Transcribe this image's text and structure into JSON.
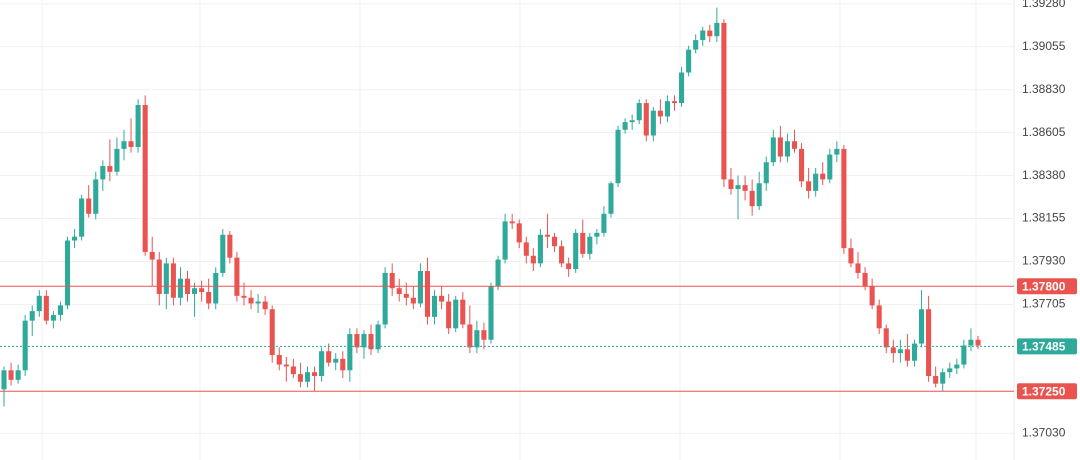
{
  "chart_data": {
    "type": "candlestick",
    "up_color": "#2fa99a",
    "down_color": "#ea5450",
    "grid": true,
    "ylim": [
      1.3689,
      1.393
    ],
    "yticks": [
      {
        "value": 1.3928,
        "label": "1.39280"
      },
      {
        "value": 1.39055,
        "label": "1.39055"
      },
      {
        "value": 1.3883,
        "label": "1.38830"
      },
      {
        "value": 1.38605,
        "label": "1.38605"
      },
      {
        "value": 1.3838,
        "label": "1.38380"
      },
      {
        "value": 1.38155,
        "label": "1.38155"
      },
      {
        "value": 1.3793,
        "label": "1.37930"
      },
      {
        "value": 1.37705,
        "label": "1.37705"
      },
      {
        "value": 1.3703,
        "label": "1.37030"
      }
    ],
    "levels": [
      {
        "value": 1.378,
        "label": "1.37800",
        "color": "#ea5450",
        "style": "solid"
      },
      {
        "value": 1.3725,
        "label": "1.37250",
        "color": "#ea5450",
        "style": "solid"
      },
      {
        "value": 1.37485,
        "label": "1.37485",
        "color": "#2fa99a",
        "style": "dashed"
      }
    ],
    "ohlc": [
      [
        1.3726,
        1.3738,
        1.3717,
        1.3736
      ],
      [
        1.3736,
        1.374,
        1.3728,
        1.3731
      ],
      [
        1.3731,
        1.3739,
        1.3729,
        1.3736
      ],
      [
        1.3736,
        1.3765,
        1.3733,
        1.3762
      ],
      [
        1.3762,
        1.377,
        1.3754,
        1.3767
      ],
      [
        1.3767,
        1.3778,
        1.3764,
        1.3775
      ],
      [
        1.3775,
        1.3778,
        1.376,
        1.3762
      ],
      [
        1.3762,
        1.3767,
        1.3758,
        1.3765
      ],
      [
        1.3765,
        1.3772,
        1.3762,
        1.377
      ],
      [
        1.377,
        1.3806,
        1.3768,
        1.3804
      ],
      [
        1.3804,
        1.381,
        1.38,
        1.3806
      ],
      [
        1.3806,
        1.3828,
        1.3804,
        1.3826
      ],
      [
        1.3826,
        1.3833,
        1.3816,
        1.3818
      ],
      [
        1.3818,
        1.384,
        1.3815,
        1.3836
      ],
      [
        1.3836,
        1.3846,
        1.383,
        1.3843
      ],
      [
        1.3843,
        1.3857,
        1.3835,
        1.384
      ],
      [
        1.384,
        1.3858,
        1.3838,
        1.3852
      ],
      [
        1.3852,
        1.3862,
        1.3846,
        1.3856
      ],
      [
        1.3856,
        1.3868,
        1.385,
        1.3853
      ],
      [
        1.3853,
        1.3878,
        1.385,
        1.3875
      ],
      [
        1.3875,
        1.388,
        1.3796,
        1.3798
      ],
      [
        1.3798,
        1.3806,
        1.378,
        1.3794
      ],
      [
        1.3794,
        1.3798,
        1.377,
        1.3776
      ],
      [
        1.3776,
        1.3795,
        1.3768,
        1.3792
      ],
      [
        1.3792,
        1.3795,
        1.377,
        1.3774
      ],
      [
        1.3774,
        1.379,
        1.377,
        1.3784
      ],
      [
        1.3784,
        1.3788,
        1.3772,
        1.3776
      ],
      [
        1.3776,
        1.3782,
        1.3764,
        1.3779
      ],
      [
        1.3779,
        1.3783,
        1.3772,
        1.3777
      ],
      [
        1.3777,
        1.3784,
        1.3768,
        1.3771
      ],
      [
        1.3771,
        1.379,
        1.3768,
        1.3787
      ],
      [
        1.3787,
        1.381,
        1.3785,
        1.3807
      ],
      [
        1.3807,
        1.3809,
        1.3792,
        1.3795
      ],
      [
        1.3795,
        1.3798,
        1.3772,
        1.3775
      ],
      [
        1.3775,
        1.3782,
        1.377,
        1.3774
      ],
      [
        1.3774,
        1.3778,
        1.3768,
        1.3771
      ],
      [
        1.3771,
        1.3776,
        1.3766,
        1.3772
      ],
      [
        1.3772,
        1.3775,
        1.3765,
        1.3768
      ],
      [
        1.3768,
        1.377,
        1.374,
        1.3744
      ],
      [
        1.3744,
        1.3748,
        1.3736,
        1.3739
      ],
      [
        1.3739,
        1.3743,
        1.373,
        1.3738
      ],
      [
        1.3738,
        1.3742,
        1.3732,
        1.3734
      ],
      [
        1.3734,
        1.374,
        1.3727,
        1.373
      ],
      [
        1.373,
        1.3738,
        1.3727,
        1.3735
      ],
      [
        1.3735,
        1.3738,
        1.3725,
        1.3733
      ],
      [
        1.3733,
        1.3748,
        1.373,
        1.3746
      ],
      [
        1.3746,
        1.375,
        1.3738,
        1.374
      ],
      [
        1.374,
        1.3745,
        1.3736,
        1.3742
      ],
      [
        1.3742,
        1.3746,
        1.3732,
        1.3736
      ],
      [
        1.3736,
        1.3758,
        1.373,
        1.3755
      ],
      [
        1.3755,
        1.3758,
        1.3745,
        1.3748
      ],
      [
        1.3748,
        1.3757,
        1.3742,
        1.3755
      ],
      [
        1.3755,
        1.376,
        1.3744,
        1.3747
      ],
      [
        1.3747,
        1.3762,
        1.3745,
        1.376
      ],
      [
        1.376,
        1.379,
        1.3758,
        1.3787
      ],
      [
        1.3787,
        1.3792,
        1.3775,
        1.3779
      ],
      [
        1.3779,
        1.3784,
        1.3772,
        1.3776
      ],
      [
        1.3776,
        1.3782,
        1.377,
        1.3774
      ],
      [
        1.3774,
        1.378,
        1.3768,
        1.3771
      ],
      [
        1.3771,
        1.3792,
        1.3769,
        1.3788
      ],
      [
        1.3788,
        1.3795,
        1.376,
        1.3764
      ],
      [
        1.3764,
        1.3778,
        1.376,
        1.3775
      ],
      [
        1.3775,
        1.378,
        1.3768,
        1.3772
      ],
      [
        1.3772,
        1.3776,
        1.3755,
        1.3758
      ],
      [
        1.3758,
        1.3775,
        1.3756,
        1.3773
      ],
      [
        1.3773,
        1.3777,
        1.3758,
        1.376
      ],
      [
        1.376,
        1.377,
        1.3745,
        1.3748
      ],
      [
        1.3748,
        1.3762,
        1.3745,
        1.3757
      ],
      [
        1.3757,
        1.3761,
        1.3747,
        1.3752
      ],
      [
        1.3752,
        1.3782,
        1.375,
        1.378
      ],
      [
        1.378,
        1.3796,
        1.3778,
        1.3794
      ],
      [
        1.3794,
        1.3818,
        1.3792,
        1.3814
      ],
      [
        1.3814,
        1.3818,
        1.381,
        1.3813
      ],
      [
        1.3813,
        1.3815,
        1.38,
        1.3803
      ],
      [
        1.3803,
        1.3806,
        1.3792,
        1.3796
      ],
      [
        1.3796,
        1.38,
        1.3788,
        1.3792
      ],
      [
        1.3792,
        1.381,
        1.379,
        1.3807
      ],
      [
        1.3807,
        1.3818,
        1.38,
        1.3806
      ],
      [
        1.3806,
        1.3808,
        1.3798,
        1.3801
      ],
      [
        1.3801,
        1.3804,
        1.379,
        1.3792
      ],
      [
        1.3792,
        1.3795,
        1.3785,
        1.3789
      ],
      [
        1.3789,
        1.381,
        1.3787,
        1.3808
      ],
      [
        1.3808,
        1.3815,
        1.3795,
        1.3797
      ],
      [
        1.3797,
        1.3808,
        1.3794,
        1.3806
      ],
      [
        1.3806,
        1.381,
        1.3802,
        1.3808
      ],
      [
        1.3808,
        1.3822,
        1.3806,
        1.3818
      ],
      [
        1.3818,
        1.3835,
        1.3816,
        1.3834
      ],
      [
        1.3834,
        1.3864,
        1.3832,
        1.3862
      ],
      [
        1.3862,
        1.3868,
        1.386,
        1.3866
      ],
      [
        1.3866,
        1.387,
        1.3862,
        1.3867
      ],
      [
        1.3867,
        1.3878,
        1.3865,
        1.3876
      ],
      [
        1.3876,
        1.3878,
        1.3856,
        1.3859
      ],
      [
        1.3859,
        1.3874,
        1.3856,
        1.3872
      ],
      [
        1.3872,
        1.3878,
        1.3865,
        1.3869
      ],
      [
        1.3869,
        1.388,
        1.3866,
        1.3877
      ],
      [
        1.3877,
        1.388,
        1.3872,
        1.3876
      ],
      [
        1.3876,
        1.3895,
        1.3874,
        1.3892
      ],
      [
        1.3892,
        1.3906,
        1.389,
        1.3904
      ],
      [
        1.3904,
        1.3912,
        1.3902,
        1.3909
      ],
      [
        1.3909,
        1.3916,
        1.3906,
        1.3914
      ],
      [
        1.3914,
        1.3917,
        1.3908,
        1.3911
      ],
      [
        1.3911,
        1.3926,
        1.3908,
        1.3918
      ],
      [
        1.3918,
        1.392,
        1.3832,
        1.3836
      ],
      [
        1.3836,
        1.3842,
        1.3828,
        1.3831
      ],
      [
        1.3831,
        1.3838,
        1.3815,
        1.3833
      ],
      [
        1.3833,
        1.3838,
        1.3825,
        1.383
      ],
      [
        1.383,
        1.3836,
        1.3817,
        1.3822
      ],
      [
        1.3822,
        1.384,
        1.382,
        1.3834
      ],
      [
        1.3834,
        1.3848,
        1.383,
        1.3845
      ],
      [
        1.3845,
        1.3862,
        1.3843,
        1.3858
      ],
      [
        1.3858,
        1.3864,
        1.3845,
        1.3848
      ],
      [
        1.3848,
        1.386,
        1.3845,
        1.3856
      ],
      [
        1.3856,
        1.3862,
        1.385,
        1.3852
      ],
      [
        1.3852,
        1.3855,
        1.3832,
        1.3835
      ],
      [
        1.3835,
        1.3842,
        1.3826,
        1.383
      ],
      [
        1.383,
        1.3842,
        1.3827,
        1.3839
      ],
      [
        1.3839,
        1.3845,
        1.3833,
        1.3836
      ],
      [
        1.3836,
        1.3852,
        1.3834,
        1.3849
      ],
      [
        1.3849,
        1.3856,
        1.3845,
        1.3852
      ],
      [
        1.3852,
        1.3854,
        1.3797,
        1.38
      ],
      [
        1.38,
        1.3805,
        1.379,
        1.3792
      ],
      [
        1.3792,
        1.3798,
        1.3784,
        1.3787
      ],
      [
        1.3787,
        1.379,
        1.3778,
        1.378
      ],
      [
        1.378,
        1.3784,
        1.3768,
        1.377
      ],
      [
        1.377,
        1.3773,
        1.3755,
        1.3758
      ],
      [
        1.3758,
        1.376,
        1.3745,
        1.3748
      ],
      [
        1.3748,
        1.3752,
        1.374,
        1.3745
      ],
      [
        1.3745,
        1.3752,
        1.374,
        1.3747
      ],
      [
        1.3747,
        1.3755,
        1.3738,
        1.3741
      ],
      [
        1.3741,
        1.3752,
        1.3738,
        1.375
      ],
      [
        1.375,
        1.3778,
        1.3748,
        1.3768
      ],
      [
        1.3768,
        1.3775,
        1.373,
        1.3733
      ],
      [
        1.3733,
        1.3738,
        1.3727,
        1.3729
      ],
      [
        1.3729,
        1.3737,
        1.3725,
        1.3735
      ],
      [
        1.3735,
        1.374,
        1.3732,
        1.3737
      ],
      [
        1.3737,
        1.3742,
        1.3734,
        1.3739
      ],
      [
        1.3739,
        1.3752,
        1.3737,
        1.3749
      ],
      [
        1.3749,
        1.3758,
        1.3746,
        1.3752
      ],
      [
        1.3752,
        1.3754,
        1.3747,
        1.3749
      ]
    ]
  }
}
